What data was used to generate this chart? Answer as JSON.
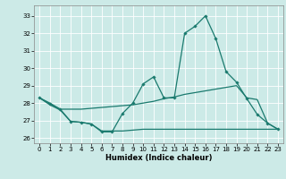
{
  "xlabel": "Humidex (Indice chaleur)",
  "bg_color": "#cceae7",
  "grid_color": "#ffffff",
  "line_color": "#1a7a6e",
  "xlim": [
    -0.5,
    23.5
  ],
  "ylim": [
    25.7,
    33.6
  ],
  "yticks": [
    26,
    27,
    28,
    29,
    30,
    31,
    32,
    33
  ],
  "xticks": [
    0,
    1,
    2,
    3,
    4,
    5,
    6,
    7,
    8,
    9,
    10,
    11,
    12,
    13,
    14,
    15,
    16,
    17,
    18,
    19,
    20,
    21,
    22,
    23
  ],
  "line1_x": [
    0,
    1,
    2,
    3,
    4,
    5,
    6,
    7,
    8,
    9,
    10,
    11,
    12,
    13,
    14,
    15,
    16,
    17,
    18,
    19,
    20,
    21,
    22,
    23
  ],
  "line1_y": [
    28.3,
    27.95,
    27.65,
    26.95,
    26.9,
    26.8,
    26.35,
    26.35,
    27.4,
    28.0,
    29.1,
    29.5,
    28.3,
    28.3,
    32.0,
    32.4,
    33.0,
    31.7,
    29.8,
    29.2,
    28.25,
    27.35,
    26.85,
    26.5
  ],
  "line2_x": [
    0,
    1,
    2,
    3,
    4,
    5,
    6,
    7,
    8,
    9,
    10,
    11,
    12,
    13,
    14,
    15,
    16,
    17,
    18,
    19,
    20,
    21,
    22,
    23
  ],
  "line2_y": [
    28.3,
    28.0,
    27.65,
    27.65,
    27.65,
    27.7,
    27.75,
    27.8,
    27.85,
    27.9,
    28.0,
    28.1,
    28.25,
    28.35,
    28.5,
    28.6,
    28.7,
    28.8,
    28.9,
    29.0,
    28.3,
    28.2,
    26.85,
    26.5
  ],
  "line3_x": [
    0,
    1,
    2,
    3,
    4,
    5,
    6,
    7,
    8,
    9,
    10,
    11,
    12,
    13,
    14,
    15,
    16,
    17,
    18,
    19,
    20,
    21,
    22,
    23
  ],
  "line3_y": [
    28.3,
    27.9,
    27.6,
    26.95,
    26.9,
    26.8,
    26.4,
    26.4,
    26.4,
    26.45,
    26.5,
    26.5,
    26.5,
    26.5,
    26.5,
    26.5,
    26.5,
    26.5,
    26.5,
    26.5,
    26.5,
    26.5,
    26.5,
    26.5
  ],
  "marker_style": "D",
  "markersize": 1.8,
  "linewidth": 0.9,
  "tick_fontsize": 5.0,
  "xlabel_fontsize": 6.0
}
